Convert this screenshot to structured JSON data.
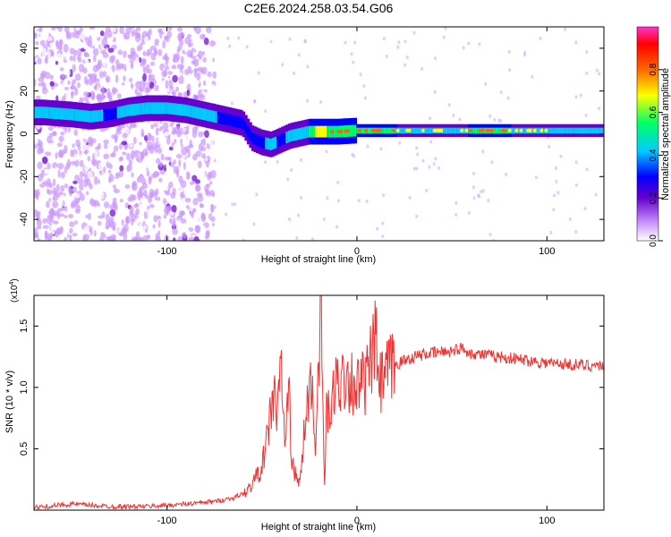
{
  "title": "C2E6.2024.258.03.54.G06",
  "chart_data": [
    {
      "type": "heatmap",
      "xlabel": "Height of straight line (km)",
      "ylabel": "Frequency (Hz)",
      "xlim": [
        -170,
        130
      ],
      "ylim": [
        -50,
        50
      ],
      "x_ticks": [
        -100,
        0,
        100
      ],
      "y_ticks": [
        -40,
        -20,
        0,
        20,
        40
      ],
      "x_tick_labels": [
        "-100",
        "0",
        "100"
      ],
      "y_tick_labels": [
        "-40",
        "-20",
        "0",
        "20",
        "40"
      ],
      "colorbar": {
        "label": "Normalized spectral amplitude",
        "range": [
          0,
          1
        ],
        "ticks": [
          0.0,
          0.2,
          0.4,
          0.6,
          0.8
        ],
        "tick_labels": [
          "0.0",
          "0.2",
          "0.4",
          "0.6",
          "0.8"
        ],
        "colors": [
          "#ffffff",
          "#cc99ff",
          "#6600cc",
          "#0000ff",
          "#00ccff",
          "#00ff66",
          "#ffff00",
          "#ff6600",
          "#ff0000",
          "#ff33cc"
        ]
      },
      "ridge": {
        "x": [
          -165,
          -150,
          -140,
          -130,
          -120,
          -110,
          -100,
          -90,
          -80,
          -70,
          -60,
          -55,
          -50,
          -45,
          -40,
          -35,
          -30,
          -25,
          -20,
          -10,
          0,
          20,
          40,
          60,
          80,
          100,
          130
        ],
        "freq": [
          10,
          9,
          8,
          9,
          11,
          12,
          12,
          11,
          9,
          7,
          5,
          -2,
          -4,
          -5,
          -3,
          -1,
          0,
          1,
          1,
          1,
          1.5,
          1.5,
          1.5,
          1.5,
          1.5,
          1.5,
          1.5
        ],
        "amplitude": [
          0.45,
          0.45,
          0.45,
          0.4,
          0.45,
          0.45,
          0.5,
          0.45,
          0.45,
          0.4,
          0.4,
          0.4,
          0.4,
          0.45,
          0.4,
          0.45,
          0.5,
          0.55,
          0.75,
          0.6,
          0.55,
          0.55,
          0.5,
          0.55,
          0.55,
          0.5,
          0.5
        ]
      }
    },
    {
      "type": "line",
      "xlabel": "Height of straight line (km)",
      "ylabel": "SNR (10 * v/v)",
      "y_multiplier": "(x10",
      "y_multiplier_exp": "4",
      "xlim": [
        -170,
        130
      ],
      "ylim": [
        0,
        1.75
      ],
      "x_ticks": [
        -100,
        0,
        100
      ],
      "y_ticks": [
        0.5,
        1.0,
        1.5
      ],
      "x_tick_labels": [
        "-100",
        "0",
        "100"
      ],
      "y_tick_labels": [
        "0.5",
        "1.0",
        "1.5"
      ],
      "color": "#ee3333",
      "series": [
        {
          "x": [
            -170,
            -150,
            -130,
            -110,
            -90,
            -75,
            -65,
            -58,
            -55,
            -50,
            -47,
            -45,
            -43,
            -42,
            -40,
            -38,
            -36,
            -34,
            -30,
            -28,
            -24,
            -22,
            -20,
            -19,
            -18,
            -17,
            -16,
            -14,
            -12,
            -10,
            -5,
            0,
            5,
            10,
            12,
            15,
            20,
            25,
            30,
            35,
            40,
            50,
            55,
            60,
            70,
            80,
            90,
            100,
            110,
            120,
            130
          ],
          "y": [
            0.02,
            0.05,
            0.03,
            0.03,
            0.05,
            0.07,
            0.1,
            0.15,
            0.22,
            0.35,
            0.6,
            0.85,
            1.0,
            0.65,
            1.3,
            0.5,
            1.0,
            0.35,
            0.2,
            0.6,
            1.1,
            0.5,
            1.3,
            1.75,
            0.9,
            0.15,
            0.85,
            0.7,
            1.0,
            1.05,
            1.1,
            1.0,
            1.05,
            1.38,
            1.0,
            1.1,
            1.18,
            1.22,
            1.25,
            1.27,
            1.28,
            1.3,
            1.32,
            1.28,
            1.26,
            1.24,
            1.22,
            1.2,
            1.19,
            1.18,
            1.18
          ]
        }
      ]
    }
  ]
}
